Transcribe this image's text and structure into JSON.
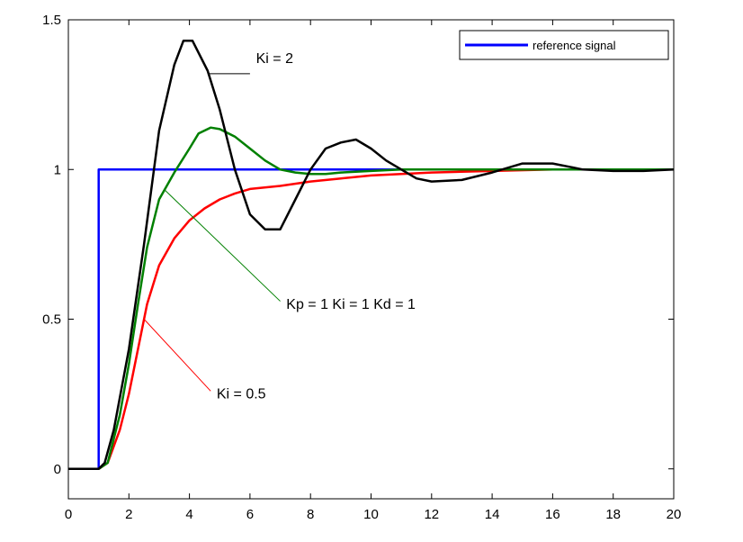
{
  "chart_data": {
    "type": "line",
    "title": "",
    "xlabel": "",
    "ylabel": "",
    "xlim": [
      0,
      20
    ],
    "ylim": [
      -0.1,
      1.5
    ],
    "grid": false,
    "legend_position": "top-right",
    "x_ticks": [
      0,
      2,
      4,
      6,
      8,
      10,
      12,
      14,
      16,
      18,
      20
    ],
    "y_ticks": [
      0,
      0.5,
      1,
      1.5
    ],
    "x_tick_labels": [
      "0",
      "2",
      "4",
      "6",
      "8",
      "10",
      "12",
      "14",
      "16",
      "18",
      "20"
    ],
    "y_tick_labels": [
      "0",
      "0.5",
      "1",
      "1.5"
    ],
    "legend": [
      {
        "label": "reference signal",
        "color": "#0000ff"
      }
    ],
    "series": [
      {
        "name": "reference signal",
        "color": "#0000ff",
        "in_legend": true,
        "x": [
          0,
          1,
          1,
          20
        ],
        "y": [
          0,
          0,
          1,
          1
        ]
      },
      {
        "name": "Ki = 0.5",
        "color": "#ff0000",
        "in_legend": false,
        "x": [
          0,
          1,
          1.3,
          1.7,
          2,
          2.3,
          2.6,
          3,
          3.5,
          4,
          4.5,
          5,
          5.5,
          6,
          7,
          8,
          9,
          10,
          11,
          12,
          14,
          16,
          18,
          20
        ],
        "y": [
          0,
          0,
          0.02,
          0.13,
          0.25,
          0.4,
          0.55,
          0.68,
          0.77,
          0.83,
          0.87,
          0.9,
          0.92,
          0.935,
          0.945,
          0.96,
          0.97,
          0.98,
          0.985,
          0.99,
          0.995,
          1.0,
          1.0,
          1.0
        ]
      },
      {
        "name": "Kp = 1  Ki = 1  Kd = 1",
        "color": "#008000",
        "in_legend": false,
        "x": [
          0,
          1,
          1.3,
          1.7,
          2,
          2.3,
          2.6,
          3,
          3.5,
          4,
          4.3,
          4.7,
          5,
          5.5,
          6,
          6.5,
          7,
          7.5,
          8,
          8.5,
          9,
          10,
          11,
          12,
          14,
          16,
          18,
          20
        ],
        "y": [
          0,
          0,
          0.02,
          0.18,
          0.35,
          0.55,
          0.74,
          0.9,
          0.99,
          1.07,
          1.12,
          1.14,
          1.135,
          1.11,
          1.07,
          1.03,
          1.0,
          0.99,
          0.985,
          0.985,
          0.99,
          0.995,
          1.0,
          1.0,
          1.0,
          1.0,
          1.0,
          1.0
        ]
      },
      {
        "name": "Ki = 2",
        "color": "#000000",
        "in_legend": false,
        "x": [
          0,
          1,
          1.2,
          1.5,
          2,
          2.5,
          3,
          3.5,
          3.8,
          4.1,
          4.6,
          5,
          5.5,
          6,
          6.5,
          7,
          7.5,
          8,
          8.5,
          9,
          9.5,
          10,
          10.5,
          11,
          11.5,
          12,
          13,
          14,
          15,
          16,
          17,
          18,
          19,
          20
        ],
        "y": [
          0,
          0,
          0.02,
          0.13,
          0.4,
          0.75,
          1.13,
          1.35,
          1.43,
          1.43,
          1.33,
          1.2,
          1.0,
          0.85,
          0.8,
          0.8,
          0.9,
          1.0,
          1.07,
          1.09,
          1.1,
          1.07,
          1.03,
          1.0,
          0.97,
          0.96,
          0.965,
          0.99,
          1.02,
          1.02,
          1.0,
          0.995,
          0.995,
          1.0
        ]
      }
    ],
    "annotations": [
      {
        "text": "Ki = 2",
        "series": "Ki = 2",
        "line": [
          [
            6.0,
            1.32
          ],
          [
            4.6,
            1.32
          ]
        ],
        "text_at": [
          6.2,
          1.355
        ]
      },
      {
        "text": "Kp = 1  Ki = 1  Kd = 1",
        "series": "Kp = 1  Ki = 1  Kd = 1",
        "line": [
          [
            7.0,
            0.56
          ],
          [
            3.2,
            0.93
          ]
        ],
        "text_at": [
          7.2,
          0.535
        ]
      },
      {
        "text": "Ki = 0.5",
        "series": "Ki = 0.5",
        "line": [
          [
            4.7,
            0.26
          ],
          [
            2.5,
            0.5
          ]
        ],
        "text_at": [
          4.9,
          0.235
        ]
      }
    ]
  }
}
